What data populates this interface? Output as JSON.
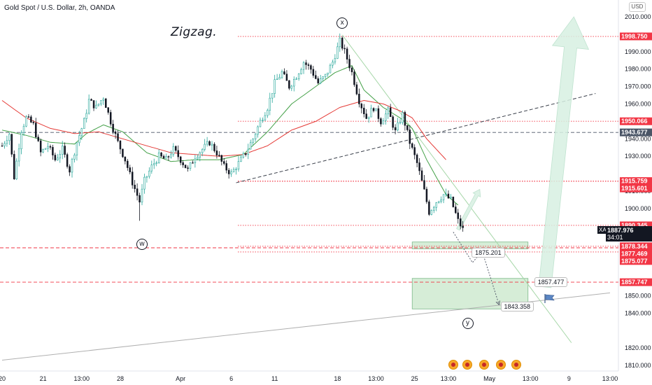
{
  "header": {
    "symbol_title": "Gold Spot / U.S. Dollar, 2h, OANDA",
    "currency_badge": "USD"
  },
  "annotation": {
    "title": "Zigzag.",
    "wave_labels": [
      {
        "label": "x",
        "index": 141,
        "price": 2006.5
      },
      {
        "label": "w",
        "index": 58,
        "price": 1879.6
      },
      {
        "label": "y",
        "index": 193,
        "price": 1834.0
      }
    ]
  },
  "current_price": {
    "symbol": "XAUUSD",
    "value": "1887.976",
    "countdown": "34:01"
  },
  "callouts": [
    {
      "text": "1875.201",
      "index": 201,
      "price": 1874.6
    },
    {
      "text": "1857.477",
      "index": 227,
      "price": 1857.8
    },
    {
      "text": "1843.358",
      "index": 213,
      "price": 1843.6
    }
  ],
  "colors": {
    "up": "#26a69a",
    "down": "#131722",
    "ma_fast": "#43a047",
    "ma_slow": "#e53935",
    "level_red": "#f23645",
    "level_grey": "#9e9e9e",
    "zone": "#a5d6a7",
    "projection": "#d7f0e2"
  },
  "icons": {
    "flag": "flag-icon",
    "events": "economic-event-icon"
  },
  "chart_data": {
    "type": "candlestick",
    "title": "Gold Spot / U.S. Dollar, 2h, OANDA",
    "x_axis": {
      "ticks": [
        {
          "label": "20",
          "index": 0
        },
        {
          "label": "21",
          "index": 17
        },
        {
          "label": "13:00",
          "index": 33
        },
        {
          "label": "28",
          "index": 49
        },
        {
          "label": "Apr",
          "index": 74
        },
        {
          "label": "6",
          "index": 95
        },
        {
          "label": "11",
          "index": 113
        },
        {
          "label": "18",
          "index": 139
        },
        {
          "label": "13:00",
          "index": 155
        },
        {
          "label": "25",
          "index": 171
        },
        {
          "label": "13:00",
          "index": 185
        },
        {
          "label": "May",
          "index": 202
        },
        {
          "label": "13:00",
          "index": 219
        },
        {
          "label": "9",
          "index": 235
        },
        {
          "label": "13:00",
          "index": 252
        }
      ]
    },
    "y_axis": {
      "range": [
        1804,
        2014
      ],
      "ticks": [
        "2010.000",
        "1990.000",
        "1980.000",
        "1970.000",
        "1960.000",
        "1940.000",
        "1930.000",
        "1910.000",
        "1900.000",
        "1850.000",
        "1840.000",
        "1820.000",
        "1810.000"
      ]
    },
    "grid": false,
    "price_levels": [
      {
        "value": 1998.75,
        "label": "1998.750",
        "color": "#f23645",
        "style": "dotted"
      },
      {
        "value": 1950.066,
        "label": "1950.066",
        "color": "#f23645",
        "style": "dotted"
      },
      {
        "value": 1943.677,
        "label": "1943.677",
        "color": "#4a5566",
        "style": "dashed"
      },
      {
        "value": 1915.759,
        "label": "1915.759",
        "color": "#f23645",
        "style": "dotted"
      },
      {
        "value": 1915.601,
        "label": "1915.601",
        "color": "#f23645",
        "style": "dotted"
      },
      {
        "value": 1890.345,
        "label": "1890.345",
        "color": "#f23645",
        "style": "dotted"
      },
      {
        "value": 1878.344,
        "label": "1878.344",
        "color": "#f23645",
        "style": "dotted"
      },
      {
        "value": 1877.469,
        "label": "1877.469",
        "color": "#f23645",
        "style": "dashed"
      },
      {
        "value": 1875.077,
        "label": "1875.077",
        "color": "#f23645",
        "style": "dotted"
      },
      {
        "value": 1857.747,
        "label": "1857.747",
        "color": "#f23645",
        "style": "dashed"
      }
    ],
    "zones": [
      {
        "i0": 170,
        "i1": 218,
        "top": 1880.8,
        "bottom": 1876.9
      },
      {
        "i0": 170,
        "i1": 218,
        "top": 1859.9,
        "bottom": 1842.4
      }
    ],
    "trendlines": [
      {
        "i0": 97,
        "p0": 1914.8,
        "i1": 246,
        "p1": 1966.0,
        "style": "dashed",
        "color": "#3a3f4a"
      },
      {
        "i0": 0,
        "p0": 1813.0,
        "i1": 252,
        "p1": 1851.6,
        "style": "solid",
        "color": "#b0b0b0"
      },
      {
        "i0": 141,
        "p0": 1999.6,
        "i1": 236,
        "p1": 1823.0,
        "style": "solid",
        "color": "#a5d6a7"
      }
    ],
    "projection_path": [
      {
        "index": 187,
        "price": 1886.5
      },
      {
        "index": 195,
        "price": 1869.0
      },
      {
        "index": 199,
        "price": 1875.5
      },
      {
        "index": 206,
        "price": 1844.8
      }
    ],
    "projection_arrows": [
      {
        "from_index": 189,
        "from_price": 1888.0,
        "to_index": 198,
        "to_price": 1911.0
      },
      {
        "from_index": 225,
        "from_price": 1855.0,
        "to_index": 237,
        "to_price": 2010.0
      }
    ],
    "series": [
      {
        "name": "",
        "type": "candles",
        "anchors": [
          [
            0,
            1936
          ],
          [
            3,
            1943
          ],
          [
            5,
            1918
          ],
          [
            8,
            1945
          ],
          [
            10,
            1952
          ],
          [
            13,
            1948
          ],
          [
            16,
            1932
          ],
          [
            19,
            1936
          ],
          [
            22,
            1928
          ],
          [
            25,
            1934
          ],
          [
            28,
            1922
          ],
          [
            31,
            1938
          ],
          [
            34,
            1950
          ],
          [
            36,
            1962
          ],
          [
            39,
            1958
          ],
          [
            42,
            1964
          ],
          [
            45,
            1950
          ],
          [
            48,
            1938
          ],
          [
            51,
            1928
          ],
          [
            54,
            1915
          ],
          [
            57,
            1904
          ],
          [
            59,
            1916
          ],
          [
            62,
            1924
          ],
          [
            65,
            1930
          ],
          [
            68,
            1928
          ],
          [
            71,
            1934
          ],
          [
            74,
            1928
          ],
          [
            77,
            1922
          ],
          [
            80,
            1930
          ],
          [
            83,
            1934
          ],
          [
            86,
            1938
          ],
          [
            89,
            1932
          ],
          [
            92,
            1924
          ],
          [
            95,
            1920
          ],
          [
            98,
            1926
          ],
          [
            101,
            1932
          ],
          [
            104,
            1940
          ],
          [
            107,
            1950
          ],
          [
            110,
            1958
          ],
          [
            113,
            1972
          ],
          [
            116,
            1978
          ],
          [
            119,
            1970
          ],
          [
            122,
            1976
          ],
          [
            125,
            1984
          ],
          [
            128,
            1980
          ],
          [
            131,
            1972
          ],
          [
            134,
            1976
          ],
          [
            137,
            1984
          ],
          [
            140,
            1996
          ],
          [
            142,
            1990
          ],
          [
            145,
            1978
          ],
          [
            148,
            1962
          ],
          [
            151,
            1952
          ],
          [
            154,
            1958
          ],
          [
            157,
            1950
          ],
          [
            160,
            1956
          ],
          [
            163,
            1944
          ],
          [
            166,
            1954
          ],
          [
            169,
            1938
          ],
          [
            172,
            1926
          ],
          [
            175,
            1910
          ],
          [
            177,
            1898
          ],
          [
            180,
            1904
          ],
          [
            183,
            1908
          ],
          [
            186,
            1905
          ],
          [
            189,
            1893
          ],
          [
            191,
            1888
          ]
        ]
      },
      {
        "name": "",
        "type": "line",
        "color": "#43a047",
        "anchors": [
          [
            0,
            1945
          ],
          [
            10,
            1942
          ],
          [
            20,
            1938
          ],
          [
            30,
            1937
          ],
          [
            35,
            1943
          ],
          [
            42,
            1948
          ],
          [
            50,
            1944
          ],
          [
            60,
            1932
          ],
          [
            70,
            1927
          ],
          [
            80,
            1928
          ],
          [
            90,
            1928
          ],
          [
            100,
            1931
          ],
          [
            110,
            1944
          ],
          [
            120,
            1960
          ],
          [
            130,
            1970
          ],
          [
            138,
            1978
          ],
          [
            145,
            1982
          ],
          [
            150,
            1968
          ],
          [
            158,
            1958
          ],
          [
            165,
            1952
          ],
          [
            170,
            1946
          ],
          [
            176,
            1928
          ],
          [
            184,
            1908
          ],
          [
            189,
            1902
          ]
        ]
      },
      {
        "name": "",
        "type": "line",
        "color": "#e53935",
        "anchors": [
          [
            0,
            1962
          ],
          [
            10,
            1952
          ],
          [
            20,
            1946
          ],
          [
            30,
            1943
          ],
          [
            40,
            1944
          ],
          [
            50,
            1940
          ],
          [
            60,
            1936
          ],
          [
            70,
            1932
          ],
          [
            80,
            1931
          ],
          [
            90,
            1930
          ],
          [
            100,
            1931
          ],
          [
            110,
            1936
          ],
          [
            120,
            1945
          ],
          [
            130,
            1950
          ],
          [
            140,
            1958
          ],
          [
            150,
            1962
          ],
          [
            158,
            1960
          ],
          [
            165,
            1956
          ],
          [
            170,
            1952
          ],
          [
            176,
            1940
          ],
          [
            184,
            1928
          ]
        ]
      }
    ]
  }
}
